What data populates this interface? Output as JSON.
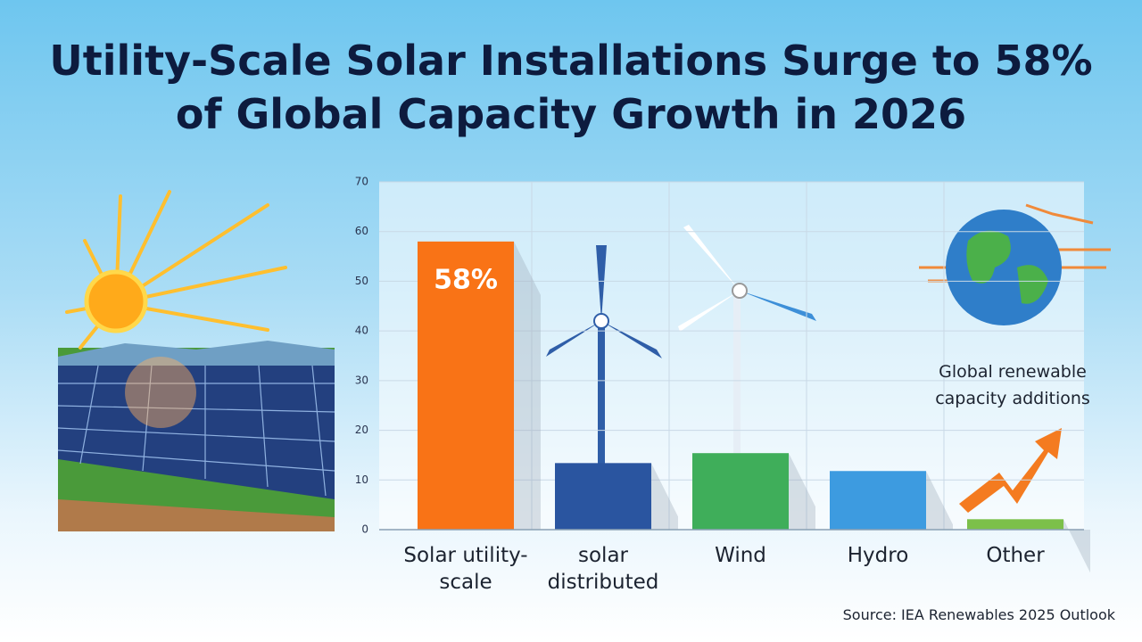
{
  "chart_data": {
    "type": "bar",
    "title": "Utility-Scale Solar Installations Surge to 58% of Global Capacity Growth in 2026",
    "categories": [
      "Solar utility-scale",
      "solar distributed",
      "Wind",
      "Hydro",
      "Other"
    ],
    "values": [
      58,
      13.4,
      15.4,
      11.8,
      2.1
    ],
    "value_labels": [
      "58%",
      null,
      null,
      null,
      null
    ],
    "colors": [
      "#f97316",
      "#2a55a0",
      "#3fae5a",
      "#3d9be0",
      "#7cc04a"
    ],
    "ylim": [
      0,
      70
    ],
    "yticks": [
      0,
      10,
      20,
      30,
      40,
      50,
      60,
      70
    ],
    "grid": true,
    "annotation": "Global renewable capacity additions",
    "source": "Source: IEA Renewables 2025 Outlook"
  }
}
